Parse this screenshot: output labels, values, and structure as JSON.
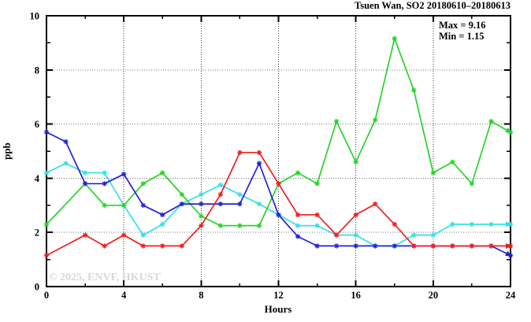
{
  "title": "Tsuen Wan, SO2 20180610–20180613",
  "stats": {
    "max_label": "Max = 9.16",
    "min_label": "Min = 1.15"
  },
  "watermark": "© 2025, ENVF, HKUST",
  "chart_data": {
    "type": "line",
    "title": "Tsuen Wan, SO2 20180610–20180613",
    "xlabel": "Hours",
    "ylabel": "ppb",
    "xlim": [
      0,
      24
    ],
    "ylim": [
      0,
      10
    ],
    "grid": true,
    "grid_x": [
      4,
      8,
      12,
      16,
      20
    ],
    "grid_y": [
      2,
      4,
      6,
      8
    ],
    "xticks_major": [
      0,
      4,
      8,
      12,
      16,
      20,
      24
    ],
    "xticks_minor": [
      2,
      6,
      10,
      14,
      18,
      22
    ],
    "yticks_major": [
      0,
      2,
      4,
      6,
      8,
      10
    ],
    "yticks_minor": [
      1,
      3,
      5,
      7,
      9
    ],
    "x": [
      0,
      1,
      2,
      3,
      4,
      5,
      6,
      7,
      8,
      9,
      10,
      11,
      12,
      13,
      14,
      15,
      16,
      17,
      18,
      19,
      20,
      21,
      22,
      23,
      24
    ],
    "series": [
      {
        "name": "cyan",
        "color": "#35dfe8",
        "values": [
          4.2,
          4.55,
          4.2,
          4.2,
          3.0,
          1.9,
          2.3,
          3.05,
          3.4,
          3.75,
          3.4,
          3.05,
          2.65,
          2.25,
          2.25,
          1.9,
          1.9,
          1.5,
          1.5,
          1.9,
          1.9,
          2.3,
          2.3,
          2.3,
          2.3
        ]
      },
      {
        "name": "green",
        "color": "#27d427",
        "values": [
          2.3,
          null,
          3.8,
          3.0,
          3.0,
          3.8,
          4.2,
          3.4,
          2.6,
          2.25,
          2.25,
          2.25,
          3.8,
          4.2,
          3.8,
          6.1,
          4.6,
          6.15,
          9.16,
          7.25,
          4.2,
          4.6,
          3.8,
          6.1,
          5.7
        ]
      },
      {
        "name": "blue",
        "color": "#2222d6",
        "values": [
          5.7,
          5.35,
          3.8,
          3.8,
          4.15,
          3.0,
          2.65,
          3.05,
          3.05,
          3.05,
          3.05,
          4.55,
          2.65,
          1.85,
          1.5,
          1.5,
          1.5,
          1.5,
          1.5,
          1.5,
          1.5,
          1.5,
          1.5,
          1.5,
          1.15
        ]
      },
      {
        "name": "red",
        "color": "#f01e1e",
        "values": [
          1.15,
          null,
          1.9,
          1.5,
          1.9,
          1.5,
          1.5,
          1.5,
          2.25,
          3.4,
          4.95,
          4.95,
          3.8,
          2.65,
          2.65,
          1.9,
          2.65,
          3.05,
          2.3,
          1.5,
          1.5,
          1.5,
          1.5,
          1.5,
          1.5
        ]
      }
    ],
    "max": 9.16,
    "min": 1.15,
    "legend_position": "none"
  }
}
